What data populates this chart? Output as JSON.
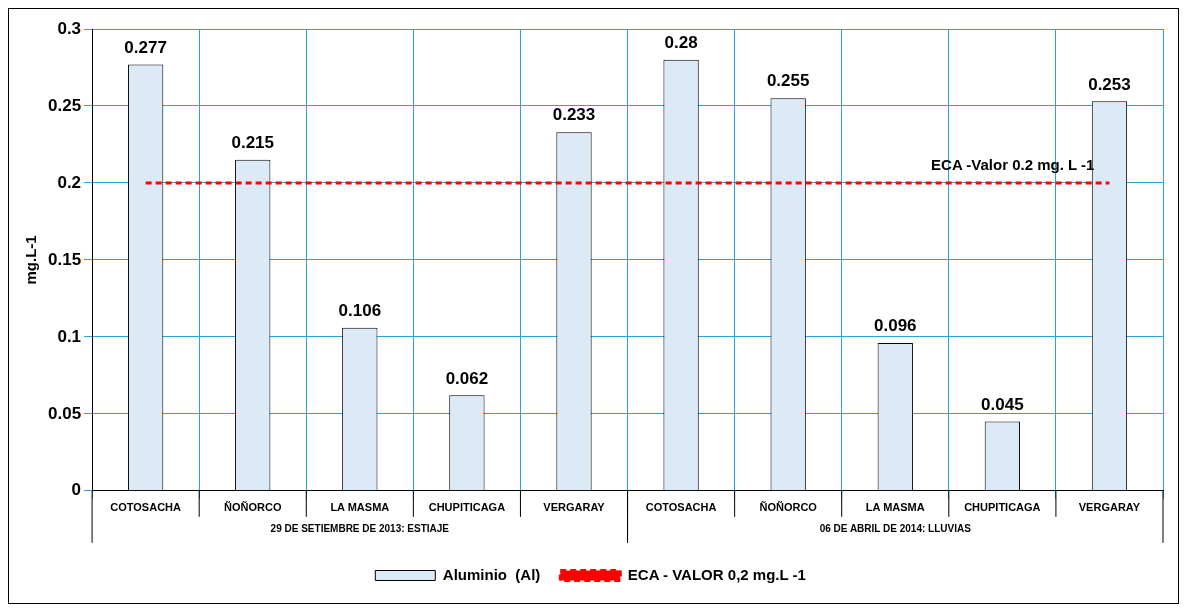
{
  "chart_data": {
    "type": "bar",
    "ylabel": "mg.L-1",
    "categories": [
      "COTOSACHA",
      "ÑOÑORCO",
      "LA MASMA",
      "CHUPITICAGA",
      "VERGARAY",
      "COTOSACHA",
      "ÑOÑORCO",
      "LA MASMA",
      "CHUPITICAGA",
      "VERGARAY"
    ],
    "series": [
      {
        "name": "Aluminio  (Al)",
        "color": "#dce9f7",
        "values": [
          0.277,
          0.215,
          0.106,
          0.062,
          0.233,
          0.28,
          0.255,
          0.096,
          0.045,
          0.253
        ],
        "value_labels": [
          "0.277",
          "0.215",
          "0.106",
          "0.062",
          "0.233",
          "0.28",
          "0.255",
          "0.096",
          "0.045",
          "0.253"
        ]
      },
      {
        "name": "ECA - VALOR 0,2 mg.L -1",
        "type": "line",
        "color": "#ff0000",
        "line_style": "dashed",
        "marker": "none",
        "values": [
          0.2,
          0.2,
          0.2,
          0.2,
          0.2,
          0.2,
          0.2,
          0.2,
          0.2,
          0.2
        ]
      }
    ],
    "annotations": [
      "ECA -Valor 0.2 mg. L -1",
      "29 DE SETIEMBRE DE 2013: ESTIAJE",
      "06 DE ABRIL DE 2014: LLUVIAS"
    ],
    "ylim": [
      0,
      0.3
    ],
    "yticks": [
      0,
      0.05,
      0.1,
      0.15,
      0.2,
      0.25,
      0.3
    ],
    "grid": true,
    "legend": "bottom"
  }
}
